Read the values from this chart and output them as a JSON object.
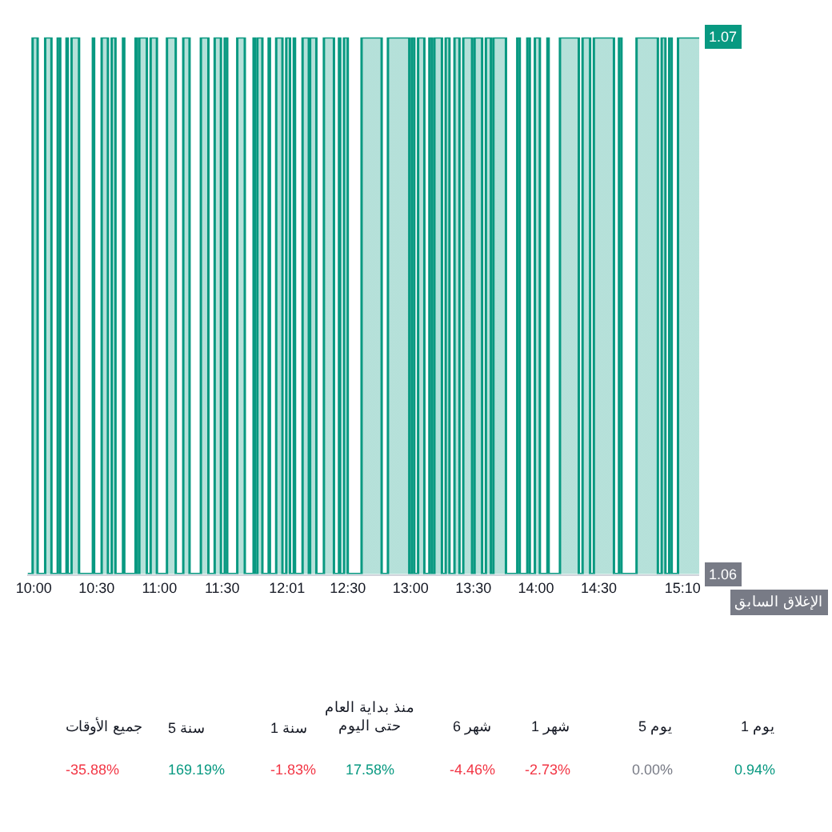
{
  "chart_data": [
    {
      "type": "area",
      "xlim": [
        9.95,
        15.3
      ],
      "ylim": [
        1.06,
        1.07
      ],
      "xticks": [
        {
          "value": 10,
          "label": "10:00"
        },
        {
          "value": 10.5,
          "label": "10:30"
        },
        {
          "value": 11,
          "label": "11:00"
        },
        {
          "value": 11.5,
          "label": "11:30"
        },
        {
          "value": 12.0167,
          "label": "12:01"
        },
        {
          "value": 12.5,
          "label": "12:30"
        },
        {
          "value": 13,
          "label": "13:00"
        },
        {
          "value": 13.5,
          "label": "13:30"
        },
        {
          "value": 14,
          "label": "14:00"
        },
        {
          "value": 14.5,
          "label": "14:30"
        },
        {
          "value": 15.1667,
          "label": "15:10"
        }
      ],
      "yticks": [
        1.06,
        1.07
      ],
      "annotations": [
        "الإغلاق السابق"
      ],
      "series": [
        {
          "color": "#089981",
          "x": [
            9.95,
            9.99,
            9.99,
            10.03,
            10.03,
            10.09,
            10.09,
            10.14,
            10.14,
            10.19,
            10.19,
            10.21,
            10.21,
            10.26,
            10.26,
            10.27,
            10.27,
            10.3,
            10.3,
            10.36,
            10.36,
            10.47,
            10.47,
            10.48,
            10.48,
            10.54,
            10.54,
            10.59,
            10.59,
            10.62,
            10.62,
            10.65,
            10.65,
            10.71,
            10.71,
            10.72,
            10.72,
            10.81,
            10.81,
            10.82,
            10.82,
            10.84,
            10.84,
            10.9,
            10.9,
            10.93,
            10.93,
            10.98,
            10.98,
            11.06,
            11.06,
            11.13,
            11.13,
            11.19,
            11.19,
            11.24,
            11.24,
            11.33,
            11.33,
            11.39,
            11.39,
            11.44,
            11.44,
            11.49,
            11.49,
            11.52,
            11.52,
            11.54,
            11.54,
            11.62,
            11.62,
            11.68,
            11.68,
            11.75,
            11.75,
            11.76,
            11.76,
            11.78,
            11.78,
            11.82,
            11.82,
            11.87,
            11.87,
            11.88,
            11.88,
            11.93,
            11.93,
            11.98,
            11.98,
            12.01,
            12.01,
            12.04,
            12.04,
            12.07,
            12.07,
            12.08,
            12.08,
            12.14,
            12.14,
            12.19,
            12.19,
            12.2,
            12.2,
            12.25,
            12.25,
            12.31,
            12.31,
            12.39,
            12.39,
            12.43,
            12.43,
            12.44,
            12.44,
            12.47,
            12.47,
            12.5,
            12.5,
            12.61,
            12.61,
            12.77,
            12.77,
            12.82,
            12.82,
            12.99,
            12.99,
            13.01,
            13.01,
            13.03,
            13.03,
            13.06,
            13.06,
            13.11,
            13.11,
            13.15,
            13.15,
            13.17,
            13.17,
            13.19,
            13.19,
            13.25,
            13.25,
            13.28,
            13.28,
            13.31,
            13.31,
            13.35,
            13.35,
            13.39,
            13.39,
            13.42,
            13.42,
            13.49,
            13.49,
            13.51,
            13.51,
            13.57,
            13.57,
            13.6,
            13.6,
            13.64,
            13.64,
            13.66,
            13.66,
            13.76,
            13.76,
            13.85,
            13.85,
            13.87,
            13.87,
            13.93,
            13.93,
            13.95,
            13.95,
            13.99,
            13.99,
            14.03,
            14.03,
            14.09,
            14.09,
            14.1,
            14.1,
            14.19,
            14.19,
            14.34,
            14.34,
            14.37,
            14.37,
            14.43,
            14.43,
            14.46,
            14.46,
            14.62,
            14.62,
            14.66,
            14.66,
            14.68,
            14.68,
            14.8,
            14.8,
            14.97,
            14.97,
            15.0,
            15.0,
            15.03,
            15.03,
            15.06,
            15.06,
            15.08,
            15.08,
            15.13,
            15.13,
            15.3
          ],
          "values": [
            1.06,
            1.06,
            1.07,
            1.07,
            1.06,
            1.06,
            1.07,
            1.07,
            1.06,
            1.06,
            1.07,
            1.07,
            1.06,
            1.06,
            1.07,
            1.07,
            1.06,
            1.06,
            1.07,
            1.07,
            1.06,
            1.06,
            1.07,
            1.07,
            1.06,
            1.06,
            1.07,
            1.07,
            1.06,
            1.06,
            1.07,
            1.07,
            1.06,
            1.06,
            1.07,
            1.07,
            1.06,
            1.06,
            1.07,
            1.07,
            1.06,
            1.06,
            1.07,
            1.07,
            1.06,
            1.06,
            1.07,
            1.07,
            1.06,
            1.06,
            1.07,
            1.07,
            1.06,
            1.06,
            1.07,
            1.07,
            1.06,
            1.06,
            1.07,
            1.07,
            1.06,
            1.06,
            1.07,
            1.07,
            1.06,
            1.06,
            1.07,
            1.07,
            1.06,
            1.06,
            1.07,
            1.07,
            1.06,
            1.06,
            1.07,
            1.07,
            1.06,
            1.06,
            1.07,
            1.07,
            1.06,
            1.06,
            1.07,
            1.07,
            1.06,
            1.06,
            1.07,
            1.07,
            1.06,
            1.06,
            1.07,
            1.07,
            1.06,
            1.06,
            1.07,
            1.07,
            1.06,
            1.06,
            1.07,
            1.07,
            1.06,
            1.06,
            1.07,
            1.07,
            1.06,
            1.06,
            1.07,
            1.07,
            1.06,
            1.06,
            1.07,
            1.07,
            1.06,
            1.06,
            1.07,
            1.07,
            1.06,
            1.06,
            1.07,
            1.07,
            1.06,
            1.06,
            1.07,
            1.07,
            1.06,
            1.06,
            1.07,
            1.07,
            1.06,
            1.06,
            1.07,
            1.07,
            1.06,
            1.06,
            1.07,
            1.07,
            1.06,
            1.06,
            1.07,
            1.07,
            1.06,
            1.06,
            1.07,
            1.07,
            1.06,
            1.06,
            1.07,
            1.07,
            1.06,
            1.06,
            1.07,
            1.07,
            1.06,
            1.06,
            1.07,
            1.07,
            1.06,
            1.06,
            1.07,
            1.07,
            1.06,
            1.06,
            1.07,
            1.07,
            1.06,
            1.06,
            1.07,
            1.07,
            1.06,
            1.06,
            1.07,
            1.07,
            1.06,
            1.06,
            1.07,
            1.07,
            1.06,
            1.06,
            1.07,
            1.07,
            1.06,
            1.06,
            1.07,
            1.07,
            1.06,
            1.06,
            1.07,
            1.07,
            1.06,
            1.06,
            1.07,
            1.07,
            1.06,
            1.06,
            1.07,
            1.07,
            1.06,
            1.06,
            1.07,
            1.07,
            1.06,
            1.06,
            1.07,
            1.07,
            1.06,
            1.06,
            1.07,
            1.07,
            1.06,
            1.06,
            1.07,
            1.07
          ]
        }
      ]
    },
    {
      "type": "other",
      "categories": [
        "جميع الأوقات",
        "5 سنة",
        "1 سنة",
        "منذ بداية العام حتى اليوم",
        "6 شهر",
        "1 شهر",
        "5 يوم",
        "1 يوم"
      ],
      "values": [
        -35.88,
        169.19,
        -1.83,
        17.58,
        -4.46,
        -2.73,
        0.0,
        0.94
      ],
      "value_labels": [
        "-35.88%",
        "169.19%",
        "-1.83%",
        "17.58%",
        "-4.46%",
        "-2.73%",
        "0.00%",
        "0.94%"
      ]
    }
  ]
}
